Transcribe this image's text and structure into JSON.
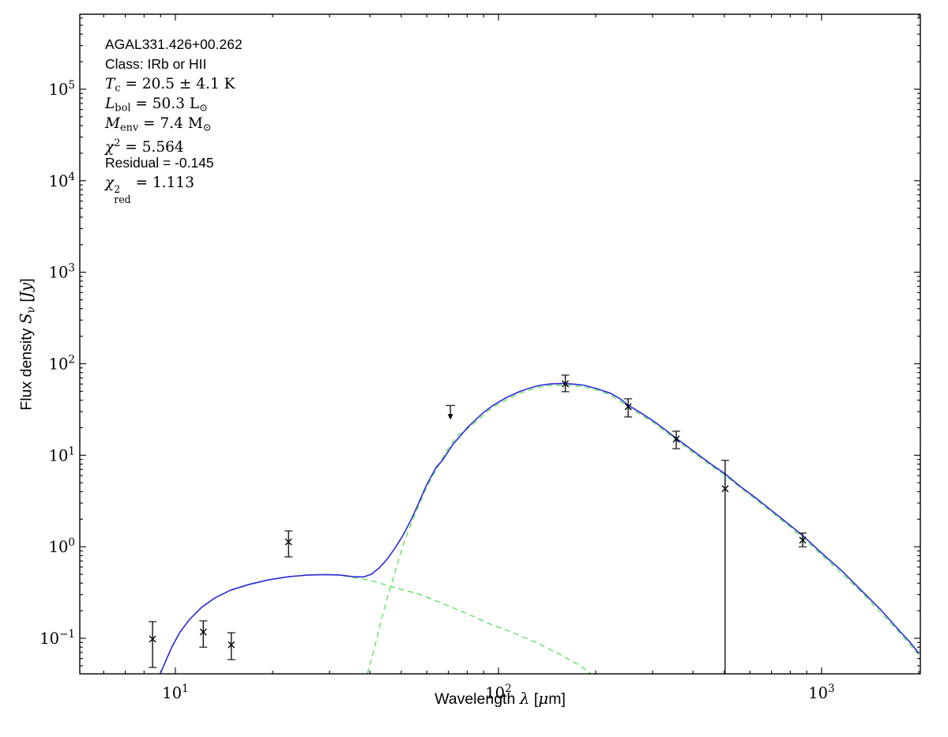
{
  "figure": {
    "annotation": {
      "lines": [
        {
          "cls": "sans",
          "segs": [
            {
              "t": "AGAL331.426+00.262",
              "s": "sans"
            }
          ]
        },
        {
          "cls": "sans",
          "segs": [
            {
              "t": "Class: IRb or HII",
              "s": "sans"
            }
          ]
        },
        {
          "cls": "math",
          "segs": [
            {
              "t": "T",
              "s": "it"
            },
            {
              "t": "c",
              "s": "sub"
            },
            {
              "t": " = 20.5 ± 4.1 K",
              "s": "rm"
            }
          ]
        },
        {
          "cls": "math",
          "segs": [
            {
              "t": "L",
              "s": "it"
            },
            {
              "t": "bol",
              "s": "sub"
            },
            {
              "t": " = 50.3 L",
              "s": "rm"
            },
            {
              "t": "⊙",
              "s": "sub"
            }
          ]
        },
        {
          "cls": "math",
          "segs": [
            {
              "t": "M",
              "s": "it"
            },
            {
              "t": "env",
              "s": "sub"
            },
            {
              "t": " = 7.4 M",
              "s": "rm"
            },
            {
              "t": "⊙",
              "s": "sub"
            }
          ]
        },
        {
          "cls": "math",
          "segs": [
            {
              "t": "χ",
              "s": "it"
            },
            {
              "t": "2",
              "s": "sup"
            },
            {
              "t": " = 5.564",
              "s": "rm"
            }
          ]
        },
        {
          "cls": "sans",
          "segs": [
            {
              "t": "Residual = -0.145",
              "s": "sans"
            }
          ]
        },
        {
          "cls": "math",
          "segs": [
            {
              "t": "χ",
              "s": "it"
            },
            {
              "s": "stack",
              "sup": "2",
              "sub": "red"
            },
            {
              "t": " = 1.113",
              "s": "rm"
            }
          ]
        }
      ]
    },
    "x_axis": {
      "label_segments": [
        {
          "t": "Wavelength ",
          "s": "sans"
        },
        {
          "t": "λ",
          "s": "it"
        },
        {
          "t": " [",
          "s": "sans"
        },
        {
          "t": "μ",
          "s": "it"
        },
        {
          "t": "m]",
          "s": "sans"
        }
      ],
      "major_exponents": [
        1,
        2,
        3
      ]
    },
    "y_axis": {
      "label_segments": [
        {
          "t": "Flux density ",
          "s": "sans"
        },
        {
          "t": "S",
          "s": "it"
        },
        {
          "t": "ν",
          "s": "sub"
        },
        {
          "t": " [",
          "s": "sans"
        },
        {
          "t": "Jy",
          "s": "it"
        },
        {
          "t": "]",
          "s": "sans"
        }
      ],
      "major_exponents": [
        -1,
        0,
        1,
        2,
        3,
        4,
        5
      ]
    },
    "colors": {
      "model_total": "#2a2ad8",
      "model_components": "#5fe35f",
      "data_points": "#000000",
      "frame": "#000000",
      "background": "#ffffff"
    }
  },
  "chart_data": {
    "type": "line",
    "title": "",
    "xlabel": "Wavelength λ [μm]",
    "ylabel": "Flux density S_ν [Jy]",
    "xscale": "log",
    "yscale": "log",
    "xlim": [
      5.06,
      2022
    ],
    "ylim": [
      0.0409,
      660000
    ],
    "grid": false,
    "legend": "none",
    "annotations": [
      "AGAL331.426+00.262",
      "Class: IRb or HII",
      "T_c = 20.5 ± 4.1 K",
      "L_bol = 50.3 L⊙",
      "M_env = 7.4 M⊙",
      "χ² = 5.564",
      "Residual = -0.145",
      "χ²_red = 1.113"
    ],
    "series": [
      {
        "name": "best-fit model (total)",
        "style": "solid",
        "color": "#2a2ad8",
        "x": [
          8.98,
          9.35,
          9.78,
          10.34,
          11.07,
          12.04,
          13.25,
          14.83,
          16.88,
          19.43,
          22.37,
          25.76,
          29.14,
          32.27,
          35.5,
          38.18,
          40.4,
          42.74,
          45.21,
          47.83,
          50.61,
          53.53,
          56.63,
          59.9,
          64.08,
          67.04,
          72.15,
          80.75,
          88.85,
          95.6,
          105.2,
          115.8,
          125.9,
          134.0,
          145.8,
          158.7,
          172.7,
          184.7,
          201.0,
          222.4,
          237.9,
          251.8,
          274.0,
          301.5,
          328.0,
          354.9,
          383.9,
          422.5,
          459.9,
          503.3,
          556.8,
          619.7,
          693.6,
          798.4,
          873.5,
          1000,
          1151,
          1325,
          1525,
          1756,
          1879,
          1998
        ],
        "y": [
          0.0409,
          0.0573,
          0.0819,
          0.117,
          0.161,
          0.217,
          0.276,
          0.336,
          0.387,
          0.435,
          0.471,
          0.491,
          0.496,
          0.491,
          0.471,
          0.467,
          0.501,
          0.587,
          0.731,
          0.965,
          1.33,
          1.94,
          3.0,
          4.73,
          7.33,
          8.77,
          13.05,
          20.62,
          28.35,
          34.58,
          42.19,
          49.46,
          54.64,
          58.0,
          60.3,
          60.9,
          59.7,
          58.0,
          53.6,
          47.5,
          41.4,
          35.3,
          29.5,
          23.7,
          19.0,
          15.3,
          12.5,
          9.69,
          7.78,
          6.25,
          4.64,
          3.51,
          2.56,
          1.72,
          1.33,
          0.856,
          0.553,
          0.336,
          0.205,
          0.117,
          0.0905,
          0.0685
        ]
      },
      {
        "name": "warm component",
        "style": "dashed",
        "color": "#5fe35f",
        "x": [
          8.98,
          9.35,
          9.78,
          10.34,
          11.07,
          12.04,
          13.25,
          14.83,
          16.88,
          19.43,
          22.37,
          25.76,
          29.14,
          32.27,
          35.5,
          40.4,
          47.83,
          56.63,
          67.04,
          80.18,
          94.2,
          111.1,
          131.8,
          155.9,
          177.9,
          193.5
        ],
        "y": [
          0.0409,
          0.0573,
          0.0819,
          0.117,
          0.161,
          0.217,
          0.276,
          0.336,
          0.387,
          0.435,
          0.471,
          0.491,
          0.496,
          0.491,
          0.462,
          0.427,
          0.357,
          0.305,
          0.24,
          0.185,
          0.143,
          0.115,
          0.0888,
          0.0659,
          0.0509,
          0.0409
        ]
      },
      {
        "name": "cold component",
        "style": "dashed",
        "color": "#5fe35f",
        "x": [
          39.25,
          40.4,
          41.77,
          43.2,
          45.21,
          47.83,
          50.61,
          53.53,
          56.63,
          59.9,
          64.08,
          68.8,
          74.9,
          80.75,
          95.6,
          115.8,
          134.0,
          145.8,
          158.7,
          172.7,
          184.7,
          201.0,
          222.4,
          251.8,
          301.5,
          354.9,
          422.5,
          503.3,
          619.7,
          798.4,
          1000,
          1325,
          1756,
          1998
        ],
        "y": [
          0.0409,
          0.0573,
          0.0923,
          0.149,
          0.27,
          0.531,
          1.024,
          1.75,
          2.82,
          4.46,
          6.91,
          10.91,
          16.57,
          19.8,
          33.2,
          47.5,
          55.7,
          57.9,
          58.5,
          57.3,
          55.7,
          51.5,
          45.6,
          33.9,
          22.8,
          14.7,
          9.3,
          6.0,
          3.37,
          1.65,
          0.82,
          0.323,
          0.112,
          0.0658
        ]
      }
    ],
    "points": [
      {
        "wavelength": 8.5,
        "flux": 0.098,
        "flux_upper": 0.152,
        "flux_lower": 0.048,
        "upper_limit": false
      },
      {
        "wavelength": 12.2,
        "flux": 0.117,
        "flux_upper": 0.155,
        "flux_lower": 0.08,
        "upper_limit": false
      },
      {
        "wavelength": 14.9,
        "flux": 0.085,
        "flux_upper": 0.115,
        "flux_lower": 0.0585,
        "upper_limit": false
      },
      {
        "wavelength": 22.4,
        "flux": 1.13,
        "flux_upper": 1.49,
        "flux_lower": 0.775,
        "upper_limit": false
      },
      {
        "wavelength": 71.0,
        "flux": 35.0,
        "flux_upper": null,
        "flux_lower": null,
        "upper_limit": true
      },
      {
        "wavelength": 161.0,
        "flux": 60.3,
        "flux_upper": 75.0,
        "flux_lower": 49.5,
        "upper_limit": false
      },
      {
        "wavelength": 252.0,
        "flux": 33.9,
        "flux_upper": 41.4,
        "flux_lower": 26.2,
        "upper_limit": false
      },
      {
        "wavelength": 355.0,
        "flux": 15.0,
        "flux_upper": 18.3,
        "flux_lower": 11.8,
        "upper_limit": false
      },
      {
        "wavelength": 503.0,
        "flux": 4.3,
        "flux_upper": 8.8,
        "flux_lower": null,
        "upper_limit": false
      },
      {
        "wavelength": 874.0,
        "flux": 1.18,
        "flux_upper": 1.41,
        "flux_lower": 1.0,
        "upper_limit": false
      }
    ]
  }
}
